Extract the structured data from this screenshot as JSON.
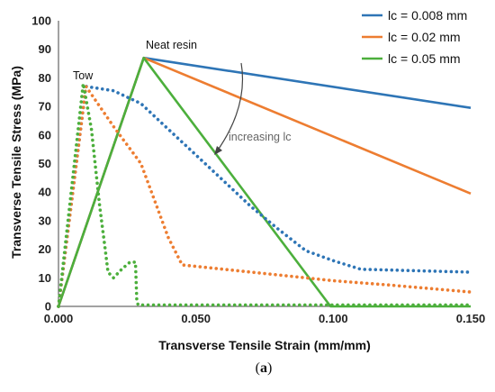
{
  "chart_data": {
    "type": "line",
    "xlabel": "Transverse Tensile Strain (mm/mm)",
    "ylabel": "Transverse Tensile Stress (MPa)",
    "xlim": [
      0,
      0.15
    ],
    "ylim": [
      0,
      100
    ],
    "x_ticks": [
      "0.000",
      "0.050",
      "0.100",
      "0.150"
    ],
    "x_tick_values": [
      0,
      0.05,
      0.1,
      0.15
    ],
    "y_ticks": [
      "0",
      "10",
      "20",
      "30",
      "40",
      "50",
      "60",
      "70",
      "80",
      "90",
      "100"
    ],
    "y_tick_values": [
      0,
      10,
      20,
      30,
      40,
      50,
      60,
      70,
      80,
      90,
      100
    ],
    "grid": false,
    "legend_position": "top-right",
    "series": [
      {
        "name": "lc = 0.008 mm",
        "color": "#2E75B6",
        "style": "solid",
        "points": [
          [
            0,
            0
          ],
          [
            0.031,
            87
          ],
          [
            0.15,
            69.5
          ]
        ]
      },
      {
        "name": "lc = 0.02 mm",
        "color": "#ED7D31",
        "style": "solid",
        "points": [
          [
            0,
            0
          ],
          [
            0.031,
            87
          ],
          [
            0.15,
            39.5
          ]
        ]
      },
      {
        "name": "lc = 0.05 mm",
        "color": "#4CAF3C",
        "style": "solid",
        "points": [
          [
            0,
            0
          ],
          [
            0.031,
            87
          ],
          [
            0.099,
            0
          ],
          [
            0.15,
            0
          ]
        ]
      },
      {
        "color": "#2E75B6",
        "style": "dotted",
        "points": [
          [
            0,
            0
          ],
          [
            0.01,
            77
          ],
          [
            0.02,
            75.5
          ],
          [
            0.03,
            71
          ],
          [
            0.04,
            62
          ],
          [
            0.05,
            53
          ],
          [
            0.06,
            44
          ],
          [
            0.07,
            35
          ],
          [
            0.08,
            27
          ],
          [
            0.09,
            19.5
          ],
          [
            0.1,
            16
          ],
          [
            0.11,
            13
          ],
          [
            0.13,
            12.5
          ],
          [
            0.15,
            12
          ]
        ]
      },
      {
        "color": "#ED7D31",
        "style": "dotted",
        "points": [
          [
            0,
            0
          ],
          [
            0.01,
            77
          ],
          [
            0.02,
            63
          ],
          [
            0.03,
            50
          ],
          [
            0.04,
            24
          ],
          [
            0.045,
            14.5
          ],
          [
            0.06,
            13
          ],
          [
            0.08,
            11
          ],
          [
            0.1,
            9
          ],
          [
            0.12,
            7.5
          ],
          [
            0.15,
            5
          ]
        ]
      },
      {
        "color": "#4CAF3C",
        "style": "dotted",
        "points": [
          [
            0,
            0
          ],
          [
            0.009,
            78
          ],
          [
            0.012,
            62
          ],
          [
            0.015,
            35
          ],
          [
            0.017,
            20
          ],
          [
            0.018,
            12
          ],
          [
            0.02,
            10
          ],
          [
            0.023,
            13
          ],
          [
            0.026,
            15.5
          ],
          [
            0.028,
            15.5
          ],
          [
            0.0285,
            2
          ],
          [
            0.029,
            0.5
          ],
          [
            0.15,
            0.5
          ]
        ]
      }
    ],
    "annotations": {
      "tow": "Tow",
      "neat_resin": "Neat resin",
      "increasing": "increasing lc"
    },
    "caption_prefix": "(",
    "caption_letter": "a",
    "caption_suffix": ")"
  }
}
